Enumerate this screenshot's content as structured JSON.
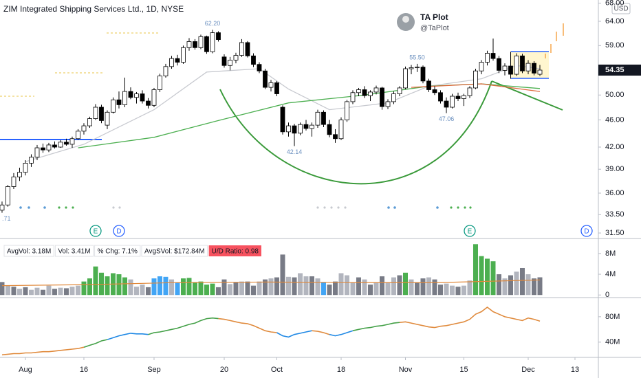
{
  "chart_data": [
    {
      "type": "candlestick",
      "title": "ZIM Integrated Shipping Services Ltd., 1D, NYSE",
      "currency": "USD",
      "author": "TA Plot",
      "handle": "@TaPlot",
      "log_scale": true,
      "up_color": "#ffffff",
      "down_color": "#000000",
      "xlim": [
        -0.35,
        102
      ],
      "ylim": [
        31.07,
        68.73
      ],
      "yticks": [
        {
          "value": 68,
          "label": "68.00"
        },
        {
          "value": 64,
          "label": "64.00"
        },
        {
          "value": 59,
          "label": "59.00"
        },
        {
          "value": 50,
          "label": "50.00"
        },
        {
          "value": 46,
          "label": "46.00"
        },
        {
          "value": 42,
          "label": "42.00"
        },
        {
          "value": 39,
          "label": "39.00"
        },
        {
          "value": 36,
          "label": "36.00"
        },
        {
          "value": 33.5,
          "label": "33.50"
        },
        {
          "value": 31.5,
          "label": "31.50"
        }
      ],
      "last_price": {
        "value": 54.35,
        "label": "54.35"
      },
      "open": [
        34.0,
        34.6,
        36.8,
        38.0,
        38.6,
        39.8,
        40.6,
        41.9,
        41.6,
        42.3,
        42.0,
        42.7,
        42.4,
        43.2,
        44.3,
        45.1,
        46.2,
        48.0,
        45.2,
        47.2,
        49.2,
        48.4,
        50.6,
        49.6,
        50.2,
        49.0,
        48.3,
        50.9,
        53.3,
        55.0,
        56.5,
        55.8,
        58.6,
        59.8,
        58.6,
        60.8,
        57.8,
        61.6,
        56.8,
        55.2,
        56.2,
        57.1,
        59.6,
        57.0,
        55.4,
        54.2,
        51.3,
        52.1,
        48.0,
        44.2,
        45.1,
        44.0,
        45.3,
        44.7,
        45.2,
        47.2,
        45.3,
        43.8,
        43.2,
        46.0,
        48.9,
        50.4,
        50.9,
        49.9,
        50.5,
        51.2,
        48.1,
        48.9,
        50.2,
        51.2,
        54.6,
        54.8,
        54.9,
        52.4,
        50.9,
        50.4,
        49.0,
        48.0,
        49.8,
        49.4,
        49.9,
        51.2,
        54.2,
        55.8,
        57.5,
        56.5,
        54.3,
        55.1,
        53.6,
        57.0,
        54.2,
        55.6,
        53.6
      ],
      "high": [
        35.0,
        37.0,
        38.5,
        39.2,
        40.2,
        41.0,
        42.3,
        42.5,
        42.6,
        42.8,
        43.0,
        43.2,
        43.5,
        44.6,
        45.5,
        46.5,
        48.5,
        48.4,
        47.5,
        49.6,
        50.6,
        53.0,
        51.3,
        50.5,
        50.8,
        49.5,
        51.2,
        53.7,
        55.5,
        57.0,
        57.2,
        59.0,
        60.5,
        60.3,
        61.2,
        61.0,
        62.2,
        61.9,
        57.3,
        56.8,
        57.6,
        60.3,
        59.9,
        57.5,
        55.8,
        54.6,
        52.6,
        52.4,
        48.3,
        45.6,
        45.4,
        45.6,
        46.0,
        45.6,
        47.6,
        47.5,
        46.0,
        44.6,
        46.4,
        49.2,
        50.8,
        51.2,
        51.5,
        50.8,
        51.6,
        51.4,
        49.3,
        50.6,
        51.5,
        55.0,
        55.3,
        55.5,
        55.2,
        52.8,
        51.5,
        50.8,
        49.6,
        50.2,
        50.4,
        50.2,
        51.5,
        54.6,
        56.2,
        58.0,
        60.4,
        57.0,
        55.6,
        57.8,
        57.5,
        57.4,
        56.2,
        56.0,
        55.3
      ],
      "low": [
        33.71,
        34.4,
        36.5,
        37.5,
        38.2,
        39.3,
        40.2,
        41.2,
        41.3,
        41.8,
        41.9,
        42.2,
        41.9,
        43.0,
        43.8,
        44.8,
        46.0,
        45.5,
        44.6,
        47.0,
        47.8,
        48.0,
        49.3,
        48.6,
        48.6,
        47.8,
        48.0,
        50.5,
        53.0,
        54.6,
        55.2,
        55.5,
        58.0,
        58.2,
        58.3,
        57.4,
        57.5,
        59.8,
        54.8,
        54.3,
        55.6,
        56.8,
        56.7,
        54.9,
        53.8,
        51.0,
        50.6,
        49.8,
        43.8,
        43.5,
        42.14,
        43.7,
        44.4,
        43.5,
        44.8,
        44.9,
        43.4,
        42.6,
        43.0,
        45.7,
        48.5,
        49.8,
        49.5,
        49.0,
        50.1,
        47.6,
        47.7,
        48.5,
        49.8,
        51.0,
        53.6,
        54.0,
        52.0,
        50.5,
        50.0,
        48.6,
        47.06,
        47.8,
        49.0,
        48.2,
        49.5,
        51.0,
        53.6,
        55.2,
        56.1,
        53.8,
        53.4,
        52.8,
        53.3,
        53.8,
        53.6,
        53.4,
        53.3
      ],
      "close": [
        34.6,
        36.8,
        38.0,
        38.6,
        39.8,
        40.6,
        41.9,
        41.6,
        42.3,
        42.0,
        42.7,
        42.4,
        43.2,
        44.3,
        45.1,
        46.2,
        48.0,
        45.9,
        47.2,
        49.2,
        48.4,
        50.6,
        49.6,
        50.2,
        49.0,
        48.3,
        50.9,
        53.3,
        55.0,
        56.5,
        55.8,
        58.6,
        59.8,
        58.6,
        60.8,
        57.8,
        61.6,
        60.2,
        55.2,
        56.2,
        57.1,
        59.6,
        57.0,
        55.4,
        54.2,
        51.3,
        52.1,
        50.2,
        44.2,
        45.1,
        44.0,
        45.3,
        44.7,
        45.2,
        47.2,
        45.3,
        43.8,
        43.2,
        46.0,
        48.9,
        50.4,
        50.9,
        49.9,
        50.5,
        51.2,
        48.1,
        48.9,
        50.2,
        51.2,
        54.6,
        54.8,
        54.9,
        52.4,
        50.9,
        50.4,
        49.0,
        48.0,
        49.8,
        49.4,
        49.9,
        51.2,
        54.2,
        55.8,
        57.5,
        56.5,
        54.3,
        55.1,
        53.6,
        57.0,
        54.2,
        55.6,
        53.8,
        54.35
      ],
      "overlays": [
        {
          "color": "#c8cad0",
          "x": [
            4,
            14,
            26,
            35,
            44,
            49,
            56,
            66,
            73,
            82,
            88,
            92
          ],
          "values": [
            40.0,
            42.4,
            47.6,
            54.0,
            54.6,
            51.0,
            47.6,
            48.7,
            51.5,
            52.8,
            55.2,
            54.6
          ]
        },
        {
          "color": "#4caf50",
          "x": [
            13,
            26,
            37,
            49,
            62,
            73,
            82,
            92
          ],
          "values": [
            41.9,
            43.4,
            45.9,
            48.7,
            50.0,
            51.5,
            51.9,
            51.1
          ]
        },
        {
          "color": "#e0663a",
          "x": [
            70,
            82,
            92
          ],
          "values": [
            51.3,
            51.9,
            50.6
          ]
        }
      ],
      "annotations": [
        {
          "x": 36,
          "value": 62.2,
          "label": "62.20",
          "side": "above"
        },
        {
          "x": 71,
          "value": 55.5,
          "label": "55.50",
          "side": "above"
        },
        {
          "x": 50,
          "value": 42.14,
          "label": "42.14",
          "side": "below"
        },
        {
          "x": 76,
          "value": 47.06,
          "label": "47.06",
          "side": "below"
        },
        {
          "x": 0,
          "value": 33.71,
          "label": ".71",
          "side": "below"
        }
      ],
      "events": [
        {
          "x": 16,
          "label": "E",
          "color": "#089981"
        },
        {
          "x": 20,
          "label": "D",
          "color": "#2962ff"
        },
        {
          "x": 80,
          "label": "E",
          "color": "#089981"
        },
        {
          "x": 100,
          "label": "D",
          "color": "#2962ff"
        }
      ]
    },
    {
      "type": "bar",
      "legend": [
        "AvgVol: 3.18M",
        "Vol: 3.41M",
        "% Chg: 7.1%",
        "AvgSVol: $172.84M",
        "U/D Ratio: 0.98"
      ],
      "legend_highlight_color": "#f7525f",
      "ylim": [
        -0.5,
        10.5
      ],
      "yticks": [
        {
          "value": 8,
          "label": "8M"
        },
        {
          "value": 4,
          "label": "4M"
        },
        0
      ],
      "values": [
        2.5,
        1.8,
        1.6,
        1.2,
        1.5,
        1.0,
        1.4,
        1.0,
        1.8,
        1.2,
        1.4,
        1.3,
        1.6,
        1.8,
        2.6,
        3.2,
        5.5,
        4.3,
        3.6,
        4.2,
        4.0,
        3.4,
        3.0,
        1.6,
        2.0,
        1.5,
        3.2,
        3.6,
        3.5,
        3.0,
        2.4,
        3.2,
        3.3,
        2.4,
        2.6,
        2.0,
        2.2,
        1.5,
        3.0,
        2.1,
        2.4,
        2.6,
        2.6,
        1.8,
        2.6,
        3.0,
        3.2,
        3.4,
        7.8,
        3.5,
        3.4,
        4.2,
        3.6,
        3.6,
        3.2,
        2.5,
        2.0,
        2.6,
        4.2,
        3.8,
        2.4,
        3.4,
        3.0,
        2.0,
        2.4,
        3.6,
        2.4,
        3.4,
        3.8,
        4.3,
        3.0,
        2.4,
        3.2,
        3.4,
        3.0,
        2.0,
        2.2,
        1.8,
        1.6,
        1.8,
        2.8,
        9.8,
        7.5,
        7.0,
        6.5,
        4.0,
        3.2,
        3.8,
        4.5,
        5.2,
        4.0,
        3.2,
        3.41
      ],
      "colors": [
        "#787b86",
        "#b2b5be",
        "#787b86",
        "#b2b5be",
        "#787b86",
        "#b2b5be",
        "#b2b5be",
        "#787b86",
        "#b2b5be",
        "#787b86",
        "#b2b5be",
        "#787b86",
        "#b2b5be",
        "#b2b5be",
        "#4caf50",
        "#4caf50",
        "#4caf50",
        "#4caf50",
        "#4caf50",
        "#4caf50",
        "#4caf50",
        "#4caf50",
        "#b2b5be",
        "#b2b5be",
        "#b2b5be",
        "#787b86",
        "#42a5f5",
        "#42a5f5",
        "#42a5f5",
        "#b2b5be",
        "#42a5f5",
        "#4caf50",
        "#4caf50",
        "#4caf50",
        "#4caf50",
        "#4caf50",
        "#4caf50",
        "#787b86",
        "#787b86",
        "#b2b5be",
        "#787b86",
        "#b2b5be",
        "#787b86",
        "#787b86",
        "#b2b5be",
        "#787b86",
        "#b2b5be",
        "#787b86",
        "#787b86",
        "#b2b5be",
        "#787b86",
        "#b2b5be",
        "#b2b5be",
        "#787b86",
        "#b2b5be",
        "#42a5f5",
        "#787b86",
        "#787b86",
        "#b2b5be",
        "#b2b5be",
        "#b2b5be",
        "#787b86",
        "#b2b5be",
        "#787b86",
        "#b2b5be",
        "#787b86",
        "#b2b5be",
        "#b2b5be",
        "#787b86",
        "#4caf50",
        "#b2b5be",
        "#787b86",
        "#787b86",
        "#b2b5be",
        "#787b86",
        "#787b86",
        "#b2b5be",
        "#b2b5be",
        "#787b86",
        "#b2b5be",
        "#b2b5be",
        "#4caf50",
        "#4caf50",
        "#4caf50",
        "#4caf50",
        "#787b86",
        "#b2b5be",
        "#787b86",
        "#b2b5be",
        "#787b86",
        "#b2b5be",
        "#787b86",
        "#787b86"
      ],
      "average": {
        "color": "#e0883a",
        "x": [
          0,
          15,
          30,
          45,
          60,
          75,
          92
        ],
        "values": [
          1.8,
          2.0,
          2.4,
          2.5,
          2.4,
          2.4,
          2.9
        ]
      }
    },
    {
      "type": "line",
      "ylim": [
        16,
        108
      ],
      "yticks": [
        {
          "value": 80,
          "label": "80M"
        },
        {
          "value": 40,
          "label": "40M"
        }
      ],
      "xticks": [
        {
          "value": 4,
          "label": "Aug"
        },
        {
          "value": 14,
          "label": "16"
        },
        {
          "value": 26,
          "label": "Sep"
        },
        {
          "value": 38,
          "label": "20"
        },
        {
          "value": 47,
          "label": "Oct"
        },
        {
          "value": 58,
          "label": "18"
        },
        {
          "value": 69,
          "label": "Nov"
        },
        {
          "value": 79,
          "label": "15"
        },
        {
          "value": 90,
          "label": "Dec"
        },
        {
          "value": 98,
          "label": "13"
        }
      ],
      "values": [
        20,
        21,
        22,
        22,
        23,
        23,
        24,
        25,
        25,
        26,
        27,
        28,
        29,
        30,
        32,
        35,
        38,
        42,
        44,
        47,
        50,
        52,
        54,
        53,
        53,
        52,
        55,
        56,
        58,
        60,
        62,
        65,
        68,
        70,
        74,
        77,
        78,
        77,
        76,
        74,
        72,
        70,
        69,
        66,
        62,
        58,
        56,
        55,
        50,
        48,
        52,
        54,
        56,
        58,
        57,
        55,
        52,
        50,
        52,
        55,
        58,
        60,
        62,
        63,
        65,
        66,
        68,
        70,
        71,
        72,
        70,
        68,
        66,
        64,
        63,
        65,
        66,
        68,
        70,
        72,
        76,
        84,
        88,
        95,
        88,
        84,
        80,
        78,
        76,
        74,
        78,
        76,
        73
      ],
      "colors": [
        "#e08a3c",
        "#e08a3c",
        "#e08a3c",
        "#e08a3c",
        "#e08a3c",
        "#e08a3c",
        "#e08a3c",
        "#e08a3c",
        "#e08a3c",
        "#e08a3c",
        "#e08a3c",
        "#e08a3c",
        "#e08a3c",
        "#e08a3c",
        "#e08a3c",
        "#43a047",
        "#43a047",
        "#43a047",
        "#43a047",
        "#1e88e5",
        "#1e88e5",
        "#1e88e5",
        "#1e88e5",
        "#1e88e5",
        "#1e88e5",
        "#1e88e5",
        "#43a047",
        "#43a047",
        "#43a047",
        "#43a047",
        "#43a047",
        "#43a047",
        "#43a047",
        "#43a047",
        "#43a047",
        "#43a047",
        "#43a047",
        "#43a047",
        "#e08a3c",
        "#e08a3c",
        "#e08a3c",
        "#e08a3c",
        "#e08a3c",
        "#e08a3c",
        "#e08a3c",
        "#e08a3c",
        "#e08a3c",
        "#e08a3c",
        "#1e88e5",
        "#1e88e5",
        "#1e88e5",
        "#1e88e5",
        "#1e88e5",
        "#1e88e5",
        "#e08a3c",
        "#e08a3c",
        "#e08a3c",
        "#1e88e5",
        "#1e88e5",
        "#1e88e5",
        "#1e88e5",
        "#43a047",
        "#43a047",
        "#43a047",
        "#43a047",
        "#43a047",
        "#43a047",
        "#43a047",
        "#43a047",
        "#e08a3c",
        "#e08a3c",
        "#e08a3c",
        "#e08a3c",
        "#e08a3c",
        "#e08a3c",
        "#e08a3c",
        "#e08a3c",
        "#e08a3c",
        "#e08a3c",
        "#e08a3c",
        "#e08a3c",
        "#e08a3c",
        "#e08a3c",
        "#e08a3c",
        "#e08a3c",
        "#e08a3c",
        "#e08a3c",
        "#e08a3c",
        "#e08a3c",
        "#e08a3c",
        "#e08a3c",
        "#e08a3c",
        "#e08a3c"
      ]
    }
  ]
}
